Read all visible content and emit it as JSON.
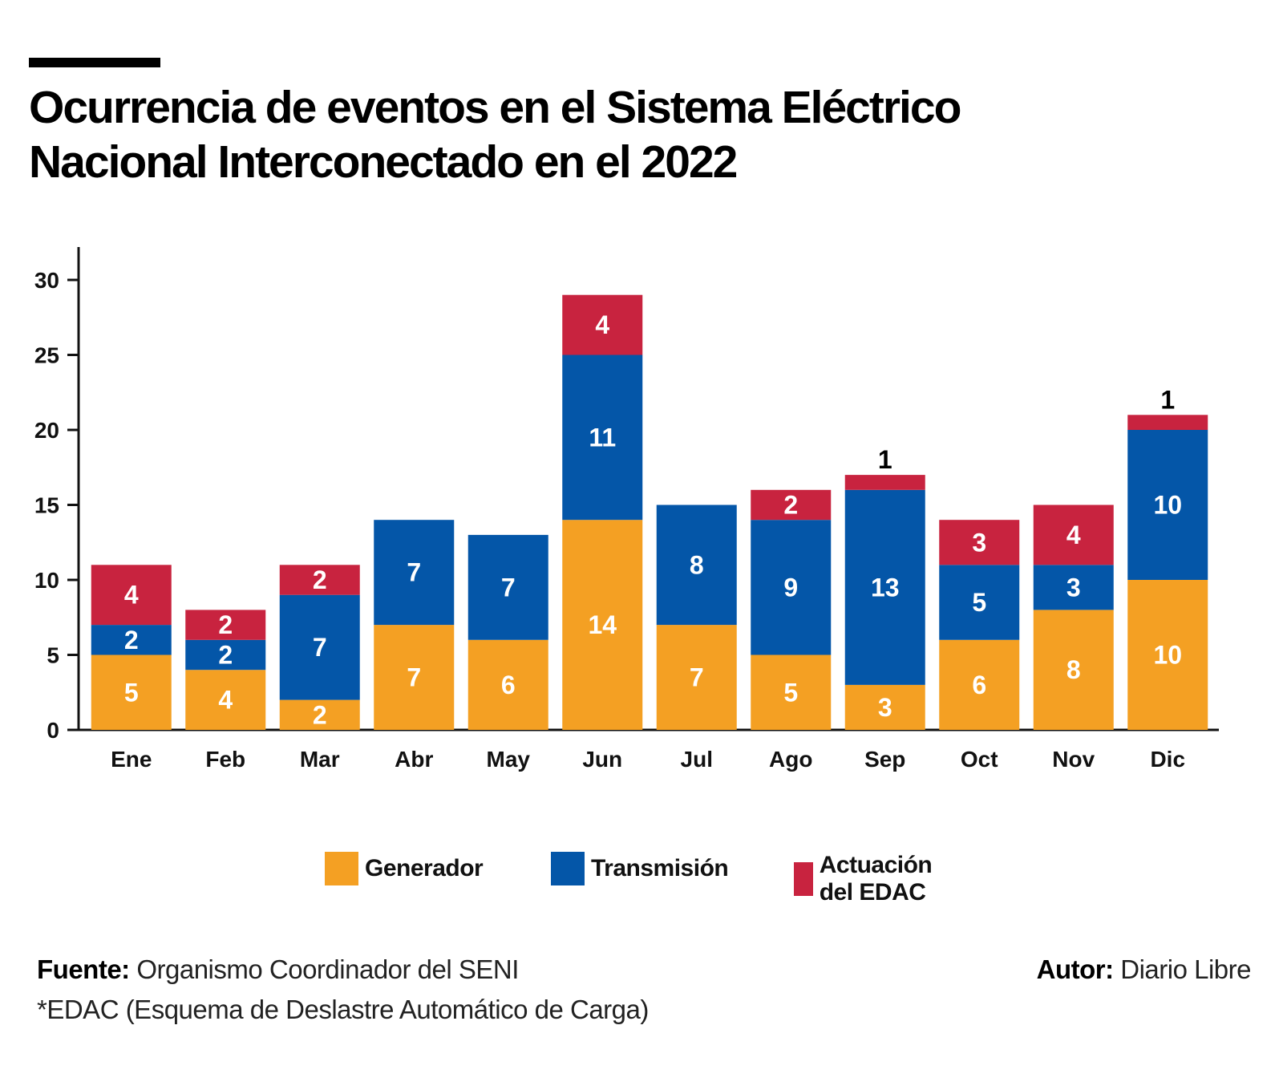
{
  "title": {
    "line1": "Ocurrencia de eventos en el Sistema Eléctrico",
    "line2": "Nacional Interconectado en el 2022"
  },
  "colors": {
    "generador": "#F4A023",
    "transmision": "#0456A8",
    "edac": "#C8233F",
    "axis": "#111111",
    "bar_label": "#FFFFFF"
  },
  "chart_data": {
    "type": "bar",
    "stacked": true,
    "title": "Ocurrencia de eventos en el Sistema Eléctrico Nacional Interconectado en el 2022",
    "xlabel": "",
    "ylabel": "",
    "ylim": [
      0,
      32
    ],
    "yticks": [
      0,
      5,
      10,
      15,
      20,
      25,
      30
    ],
    "grid": false,
    "legend_position": "bottom",
    "categories": [
      "Ene",
      "Feb",
      "Mar",
      "Abr",
      "May",
      "Jun",
      "Jul",
      "Ago",
      "Sep",
      "Oct",
      "Nov",
      "Dic"
    ],
    "series": [
      {
        "name": "Generador",
        "key": "generador",
        "values": [
          5,
          4,
          2,
          7,
          6,
          14,
          7,
          5,
          3,
          6,
          8,
          10
        ]
      },
      {
        "name": "Transmisión",
        "key": "transmision",
        "values": [
          2,
          2,
          7,
          7,
          7,
          11,
          8,
          9,
          13,
          5,
          3,
          10
        ]
      },
      {
        "name": "Actuación del EDAC",
        "key": "edac",
        "values": [
          4,
          2,
          2,
          0,
          0,
          4,
          0,
          2,
          1,
          3,
          4,
          1
        ]
      }
    ],
    "outside_labels": [
      "Sep:edac",
      "Dic:edac"
    ]
  },
  "legend": [
    {
      "label": "Generador",
      "key": "generador"
    },
    {
      "label": "Transmisión",
      "key": "transmision"
    },
    {
      "label": "Actuación del EDAC",
      "key": "edac"
    }
  ],
  "footer": {
    "source_label": "Fuente:",
    "source_text": " Organismo Coordinador del SENI",
    "note": "*EDAC (Esquema de Deslastre Automático de Carga)",
    "author_label": "Autor:",
    "author_text": " Diario Libre"
  }
}
